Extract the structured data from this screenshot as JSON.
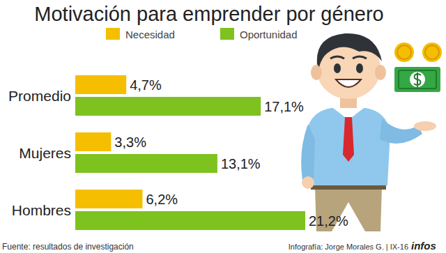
{
  "chart_data": {
    "type": "bar",
    "title": "Motivación para emprender por género",
    "orientation": "horizontal",
    "categories": [
      "Promedio",
      "Mujeres",
      "Hombres"
    ],
    "series": [
      {
        "name": "Necesidad",
        "color": "#f5be00",
        "values": [
          4.7,
          3.3,
          6.2
        ],
        "value_labels": [
          "4,7%",
          "3,3%",
          "6,2%"
        ]
      },
      {
        "name": "Oportunidad",
        "color": "#7dc21e",
        "values": [
          17.1,
          13.1,
          21.2
        ],
        "value_labels": [
          "17,1%",
          "13,1%",
          "21,2%"
        ]
      }
    ],
    "xlim": [
      0,
      21.2
    ],
    "xticks": [],
    "tick_labels": false,
    "grid": false,
    "legend": "top",
    "data_labels": true,
    "source": "Fuente: resultados de investigación",
    "credit": "Infografía: Jorge Morales G. | IX-16",
    "annotations": [
      "infos"
    ]
  }
}
